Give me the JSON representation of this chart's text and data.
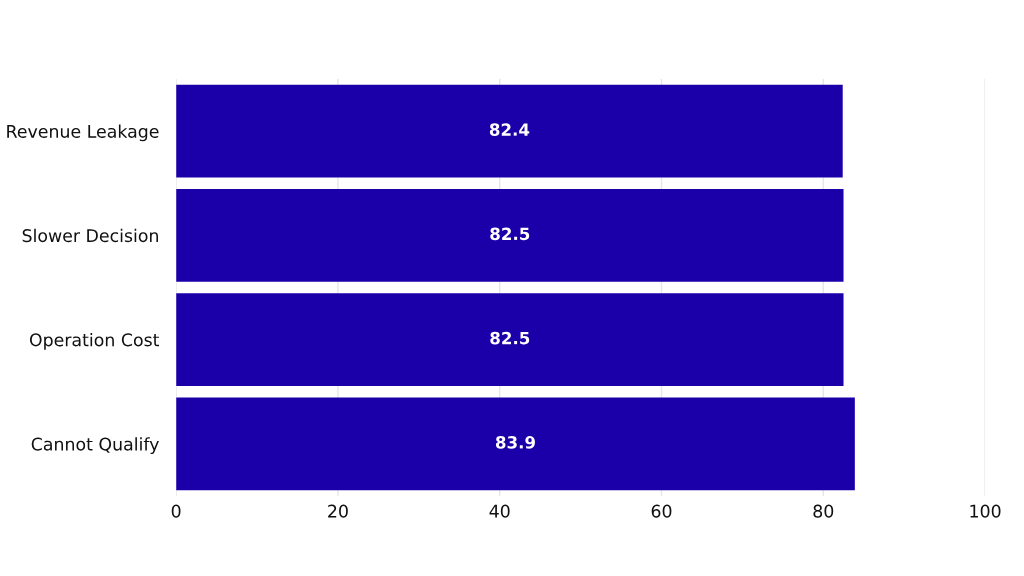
{
  "chart_data": {
    "type": "bar",
    "orientation": "horizontal",
    "categories": [
      "Revenue Leakage",
      "Slower Decision",
      "Operation Cost",
      "Cannot Qualify"
    ],
    "values": [
      82.4,
      82.5,
      82.5,
      83.9
    ],
    "color": "#1b00a9",
    "xlim": [
      0,
      100
    ],
    "xticks": [
      0,
      20,
      40,
      60,
      80,
      100
    ],
    "grid": "x",
    "data_labels": true
  }
}
